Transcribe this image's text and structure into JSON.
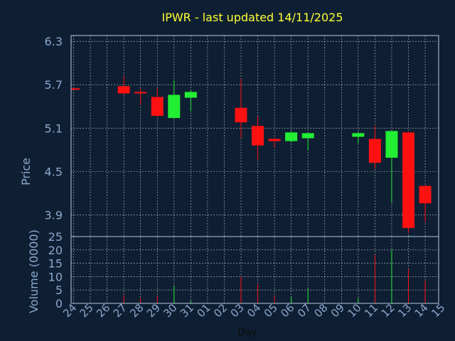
{
  "chart_data": {
    "type": "candlestick",
    "title": "IPWR - last updated 14/11/2025",
    "xlabel": "Day",
    "price_panel": {
      "ylabel": "Price",
      "ylim": [
        3.6,
        6.38
      ],
      "yticks": [
        "6.3",
        "5.7",
        "5.1",
        "4.5",
        "3.9"
      ],
      "ytick_values": [
        6.3,
        5.7,
        5.1,
        4.5,
        3.9
      ],
      "grid": true
    },
    "volume_panel": {
      "ylabel": "Volume (0000)",
      "ylim": [
        0,
        25
      ],
      "yticks": [
        "25",
        "20",
        "15",
        "10",
        "5",
        "0"
      ],
      "ytick_values": [
        25,
        20,
        15,
        10,
        5,
        0
      ],
      "grid": true
    },
    "x_tick_labels": [
      "24",
      "25",
      "26",
      "27",
      "28",
      "29",
      "30",
      "31",
      "01",
      "02",
      "03",
      "04",
      "05",
      "06",
      "07",
      "08",
      "09",
      "10",
      "11",
      "12",
      "13",
      "14",
      "15"
    ],
    "candles": [
      {
        "day": "24",
        "open": 5.65,
        "high": 5.66,
        "low": 5.63,
        "close": 5.63,
        "volume": 0.3
      },
      {
        "day": "27",
        "open": 5.68,
        "high": 5.82,
        "low": 5.56,
        "close": 5.58,
        "volume": 3
      },
      {
        "day": "28",
        "open": 5.6,
        "high": 5.65,
        "low": 5.42,
        "close": 5.58,
        "volume": 2
      },
      {
        "day": "29",
        "open": 5.53,
        "high": 5.65,
        "low": 5.25,
        "close": 5.27,
        "volume": 3
      },
      {
        "day": "30",
        "open": 5.24,
        "high": 5.76,
        "low": 5.22,
        "close": 5.56,
        "volume": 6.5
      },
      {
        "day": "31",
        "open": 5.52,
        "high": 5.62,
        "low": 5.33,
        "close": 5.6,
        "volume": 1
      },
      {
        "day": "03",
        "open": 5.38,
        "high": 5.78,
        "low": 4.97,
        "close": 5.18,
        "volume": 10
      },
      {
        "day": "04",
        "open": 5.13,
        "high": 5.26,
        "low": 4.66,
        "close": 4.86,
        "volume": 7
      },
      {
        "day": "05",
        "open": 4.95,
        "high": 4.97,
        "low": 4.83,
        "close": 4.92,
        "volume": 3
      },
      {
        "day": "06",
        "open": 4.92,
        "high": 5.06,
        "low": 4.9,
        "close": 5.04,
        "volume": 2.5
      },
      {
        "day": "07",
        "open": 4.96,
        "high": 5.04,
        "low": 4.79,
        "close": 5.03,
        "volume": 5.5
      },
      {
        "day": "10",
        "open": 4.98,
        "high": 5.05,
        "low": 4.89,
        "close": 5.03,
        "volume": 2
      },
      {
        "day": "11",
        "open": 4.95,
        "high": 5.13,
        "low": 4.54,
        "close": 4.62,
        "volume": 18
      },
      {
        "day": "12",
        "open": 4.69,
        "high": 5.06,
        "low": 4.07,
        "close": 5.06,
        "volume": 20
      },
      {
        "day": "13",
        "open": 5.04,
        "high": 5.05,
        "low": 3.65,
        "close": 3.72,
        "volume": 13
      },
      {
        "day": "14",
        "open": 4.3,
        "high": 4.31,
        "low": 3.8,
        "close": 4.06,
        "volume": 8.5
      }
    ],
    "colors": {
      "background": "#0f1f33",
      "title": "#ffff33",
      "axis_text": "#8aa8cc",
      "grid": "#ffffff",
      "up": "#22ee33",
      "down": "#ff1111",
      "frame": "#b8c8dc"
    }
  }
}
